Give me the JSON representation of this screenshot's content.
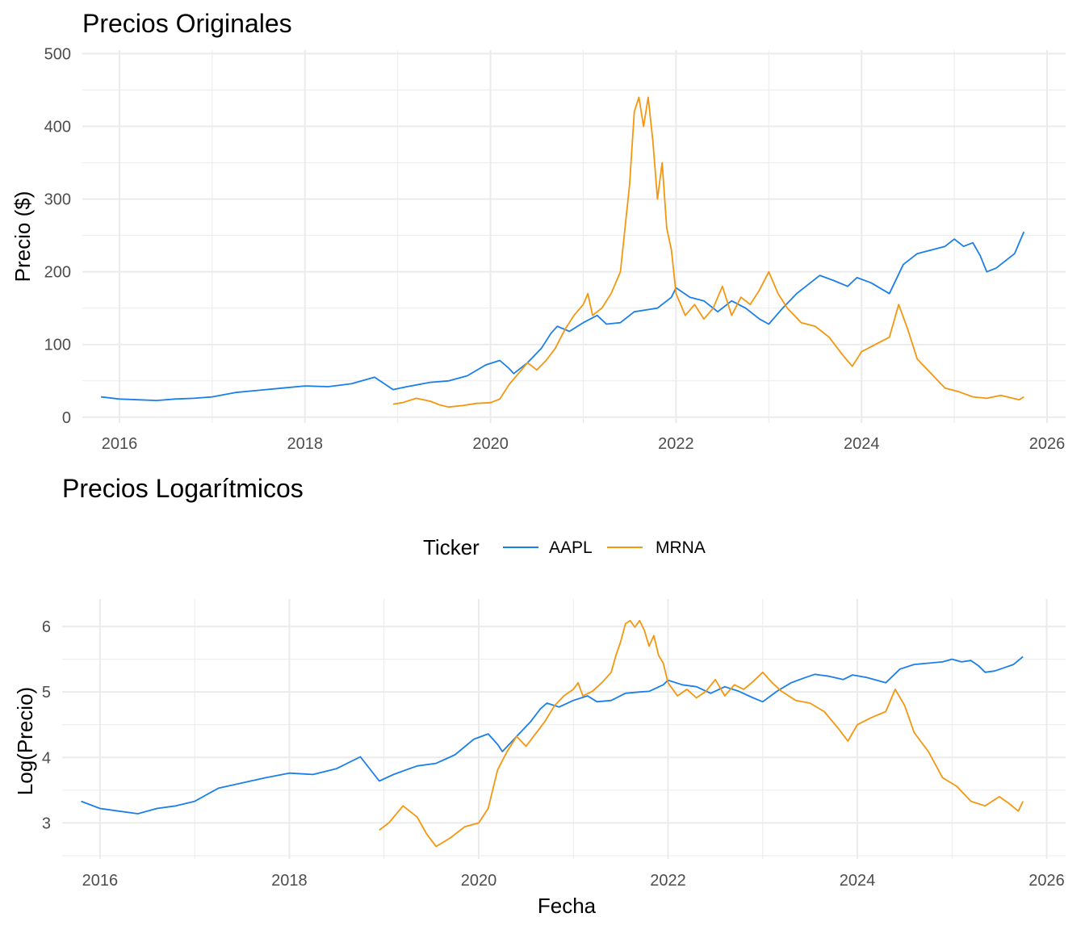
{
  "colors": {
    "AAPL": "#1a7fe8",
    "MRNA": "#f5960f",
    "grid": "#ebebeb",
    "tick_text": "#4d4d4d"
  },
  "legend": {
    "title": "Ticker",
    "entries": [
      "AAPL",
      "MRNA"
    ]
  },
  "chart_data": [
    {
      "type": "line",
      "title": "Precios Originales",
      "xlabel": "",
      "ylabel": "Precio ($)",
      "xlim": [
        2015.6,
        2026.2
      ],
      "ylim": [
        -8,
        505
      ],
      "x_ticks": [
        2016,
        2018,
        2020,
        2022,
        2024,
        2026
      ],
      "x_tick_labels": [
        "2016",
        "2018",
        "2020",
        "2022",
        "2024",
        "2026"
      ],
      "y_ticks": [
        0,
        100,
        200,
        300,
        400,
        500
      ],
      "y_tick_labels": [
        "0",
        "100",
        "200",
        "300",
        "400",
        "500"
      ],
      "grid": true,
      "series": [
        {
          "name": "AAPL",
          "x": [
            2015.8,
            2016.0,
            2016.2,
            2016.4,
            2016.6,
            2016.8,
            2017.0,
            2017.25,
            2017.5,
            2017.75,
            2018.0,
            2018.25,
            2018.5,
            2018.75,
            2018.95,
            2019.1,
            2019.35,
            2019.55,
            2019.75,
            2019.95,
            2020.1,
            2020.2,
            2020.25,
            2020.4,
            2020.55,
            2020.65,
            2020.72,
            2020.85,
            2021.0,
            2021.15,
            2021.25,
            2021.4,
            2021.55,
            2021.7,
            2021.8,
            2021.95,
            2022.0,
            2022.15,
            2022.3,
            2022.45,
            2022.6,
            2022.75,
            2022.9,
            2023.0,
            2023.15,
            2023.3,
            2023.45,
            2023.55,
            2023.7,
            2023.85,
            2023.95,
            2024.1,
            2024.3,
            2024.45,
            2024.6,
            2024.75,
            2024.9,
            2025.0,
            2025.1,
            2025.2,
            2025.28,
            2025.35,
            2025.45,
            2025.55,
            2025.65,
            2025.75
          ],
          "y": [
            28,
            25,
            24,
            23,
            25,
            26,
            28,
            34,
            37,
            40,
            43,
            42,
            46,
            55,
            38,
            42,
            48,
            50,
            57,
            72,
            78,
            67,
            60,
            75,
            95,
            115,
            125,
            118,
            130,
            140,
            128,
            130,
            145,
            148,
            150,
            165,
            178,
            165,
            160,
            145,
            160,
            150,
            135,
            128,
            150,
            170,
            185,
            195,
            188,
            180,
            192,
            185,
            170,
            210,
            225,
            230,
            235,
            245,
            235,
            240,
            222,
            200,
            205,
            215,
            225,
            255
          ]
        },
        {
          "name": "MRNA",
          "x": [
            2018.95,
            2019.05,
            2019.2,
            2019.35,
            2019.45,
            2019.55,
            2019.7,
            2019.85,
            2020.0,
            2020.1,
            2020.2,
            2020.3,
            2020.4,
            2020.5,
            2020.6,
            2020.7,
            2020.8,
            2020.9,
            2021.0,
            2021.05,
            2021.1,
            2021.2,
            2021.3,
            2021.4,
            2021.45,
            2021.5,
            2021.55,
            2021.6,
            2021.65,
            2021.7,
            2021.75,
            2021.8,
            2021.85,
            2021.9,
            2021.95,
            2022.0,
            2022.1,
            2022.2,
            2022.3,
            2022.4,
            2022.5,
            2022.6,
            2022.7,
            2022.8,
            2022.9,
            2023.0,
            2023.1,
            2023.2,
            2023.35,
            2023.5,
            2023.65,
            2023.8,
            2023.9,
            2024.0,
            2024.15,
            2024.3,
            2024.4,
            2024.5,
            2024.6,
            2024.75,
            2024.9,
            2025.05,
            2025.2,
            2025.35,
            2025.5,
            2025.6,
            2025.7,
            2025.75
          ],
          "y": [
            18,
            20,
            26,
            22,
            17,
            14,
            16,
            19,
            20,
            25,
            45,
            60,
            75,
            65,
            78,
            95,
            120,
            140,
            155,
            170,
            140,
            150,
            170,
            200,
            260,
            320,
            420,
            440,
            400,
            440,
            380,
            300,
            350,
            260,
            230,
            170,
            140,
            155,
            135,
            150,
            180,
            140,
            165,
            155,
            175,
            200,
            170,
            150,
            130,
            125,
            110,
            85,
            70,
            90,
            100,
            110,
            155,
            120,
            80,
            60,
            40,
            35,
            28,
            26,
            30,
            27,
            24,
            28
          ]
        }
      ]
    },
    {
      "type": "line",
      "title": "Precios Logarítmicos",
      "xlabel": "Fecha",
      "ylabel": "Log(Precio)",
      "xlim": [
        2015.6,
        2026.2
      ],
      "ylim": [
        2.45,
        6.42
      ],
      "x_ticks": [
        2016,
        2018,
        2020,
        2022,
        2024,
        2026
      ],
      "x_tick_labels": [
        "2016",
        "2018",
        "2020",
        "2022",
        "2024",
        "2026"
      ],
      "y_ticks": [
        3,
        4,
        5,
        6
      ],
      "y_tick_labels": [
        "3",
        "4",
        "5",
        "6"
      ],
      "grid": true,
      "series": [
        {
          "name": "AAPL",
          "x": [
            2015.8,
            2016.0,
            2016.2,
            2016.4,
            2016.6,
            2016.8,
            2017.0,
            2017.25,
            2017.5,
            2017.75,
            2018.0,
            2018.25,
            2018.5,
            2018.75,
            2018.95,
            2019.1,
            2019.35,
            2019.55,
            2019.75,
            2019.95,
            2020.1,
            2020.2,
            2020.25,
            2020.4,
            2020.55,
            2020.65,
            2020.72,
            2020.85,
            2021.0,
            2021.15,
            2021.25,
            2021.4,
            2021.55,
            2021.7,
            2021.8,
            2021.95,
            2022.0,
            2022.15,
            2022.3,
            2022.45,
            2022.6,
            2022.75,
            2022.9,
            2023.0,
            2023.15,
            2023.3,
            2023.45,
            2023.55,
            2023.7,
            2023.85,
            2023.95,
            2024.1,
            2024.3,
            2024.45,
            2024.6,
            2024.75,
            2024.9,
            2025.0,
            2025.1,
            2025.2,
            2025.28,
            2025.35,
            2025.45,
            2025.55,
            2025.65,
            2025.75
          ],
          "y": [
            3.33,
            3.22,
            3.18,
            3.14,
            3.22,
            3.26,
            3.33,
            3.53,
            3.61,
            3.69,
            3.76,
            3.74,
            3.83,
            4.01,
            3.64,
            3.74,
            3.87,
            3.91,
            4.04,
            4.28,
            4.36,
            4.2,
            4.09,
            4.32,
            4.55,
            4.74,
            4.83,
            4.77,
            4.87,
            4.94,
            4.85,
            4.87,
            4.98,
            5.0,
            5.01,
            5.11,
            5.18,
            5.11,
            5.08,
            4.98,
            5.08,
            5.01,
            4.91,
            4.85,
            5.01,
            5.14,
            5.22,
            5.27,
            5.24,
            5.19,
            5.26,
            5.22,
            5.14,
            5.35,
            5.42,
            5.44,
            5.46,
            5.5,
            5.46,
            5.48,
            5.4,
            5.3,
            5.32,
            5.37,
            5.42,
            5.54
          ]
        },
        {
          "name": "MRNA",
          "x": [
            2018.95,
            2019.05,
            2019.2,
            2019.35,
            2019.45,
            2019.55,
            2019.7,
            2019.85,
            2020.0,
            2020.1,
            2020.2,
            2020.3,
            2020.4,
            2020.5,
            2020.6,
            2020.7,
            2020.8,
            2020.9,
            2021.0,
            2021.05,
            2021.1,
            2021.2,
            2021.3,
            2021.4,
            2021.45,
            2021.5,
            2021.55,
            2021.6,
            2021.65,
            2021.7,
            2021.75,
            2021.8,
            2021.85,
            2021.9,
            2021.95,
            2022.0,
            2022.1,
            2022.2,
            2022.3,
            2022.4,
            2022.5,
            2022.6,
            2022.7,
            2022.8,
            2022.9,
            2023.0,
            2023.1,
            2023.2,
            2023.35,
            2023.5,
            2023.65,
            2023.8,
            2023.9,
            2024.0,
            2024.15,
            2024.3,
            2024.4,
            2024.5,
            2024.6,
            2024.75,
            2024.9,
            2025.05,
            2025.2,
            2025.35,
            2025.5,
            2025.6,
            2025.7,
            2025.75
          ],
          "y": [
            2.89,
            3.0,
            3.26,
            3.09,
            2.83,
            2.64,
            2.77,
            2.94,
            3.0,
            3.22,
            3.81,
            4.09,
            4.32,
            4.17,
            4.36,
            4.55,
            4.79,
            4.94,
            5.04,
            5.14,
            4.94,
            5.01,
            5.14,
            5.3,
            5.56,
            5.77,
            6.04,
            6.09,
            5.99,
            6.09,
            5.94,
            5.7,
            5.86,
            5.56,
            5.44,
            5.14,
            4.94,
            5.04,
            4.91,
            5.01,
            5.19,
            4.94,
            5.11,
            5.04,
            5.16,
            5.3,
            5.14,
            5.01,
            4.87,
            4.83,
            4.7,
            4.44,
            4.25,
            4.5,
            4.61,
            4.7,
            5.04,
            4.79,
            4.38,
            4.09,
            3.69,
            3.56,
            3.33,
            3.26,
            3.4,
            3.3,
            3.18,
            3.33
          ]
        }
      ]
    }
  ]
}
